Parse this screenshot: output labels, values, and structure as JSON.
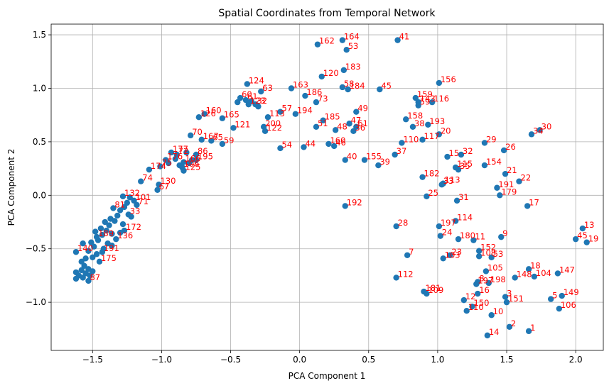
{
  "chart_data": {
    "type": "scatter",
    "title": "Spatial Coordinates from Temporal Network",
    "xlabel": "PCA Component 1",
    "ylabel": "PCA Component 2",
    "xlim": [
      -1.8,
      2.2
    ],
    "ylim": [
      -1.45,
      1.6
    ],
    "xticks": [
      -1.5,
      -1.0,
      -0.5,
      0.0,
      0.5,
      1.0,
      1.5,
      2.0
    ],
    "xtick_labels": [
      "−1.5",
      "−1.0",
      "−0.5",
      "0.0",
      "0.5",
      "1.0",
      "1.5",
      "2.0"
    ],
    "yticks": [
      -1.0,
      -0.5,
      0.0,
      0.5,
      1.0,
      1.5
    ],
    "ytick_labels": [
      "−1.0",
      "−0.5",
      "0.0",
      "0.5",
      "1.0",
      "1.5"
    ],
    "grid": true,
    "marker_color": "#1f77b4",
    "label_color": "#ff0000",
    "points": [
      {
        "label": "164",
        "x": 0.31,
        "y": 1.45
      },
      {
        "label": "41",
        "x": 0.71,
        "y": 1.45
      },
      {
        "label": "162",
        "x": 0.13,
        "y": 1.41
      },
      {
        "label": "53",
        "x": 0.34,
        "y": 1.36
      },
      {
        "label": "183",
        "x": 0.32,
        "y": 1.17
      },
      {
        "label": "120",
        "x": 0.16,
        "y": 1.11
      },
      {
        "label": "156",
        "x": 1.01,
        "y": 1.05
      },
      {
        "label": "124",
        "x": -0.38,
        "y": 1.04
      },
      {
        "label": "58",
        "x": 0.31,
        "y": 1.01
      },
      {
        "label": "184",
        "x": 0.35,
        "y": 0.99
      },
      {
        "label": "45",
        "x": 0.58,
        "y": 0.99
      },
      {
        "label": "163",
        "x": -0.06,
        "y": 1.0
      },
      {
        "label": "63",
        "x": -0.28,
        "y": 0.97
      },
      {
        "label": "186",
        "x": 0.04,
        "y": 0.93
      },
      {
        "label": "159",
        "x": 0.84,
        "y": 0.91
      },
      {
        "label": "60",
        "x": -0.43,
        "y": 0.91
      },
      {
        "label": "61",
        "x": -0.39,
        "y": 0.89
      },
      {
        "label": "143",
        "x": 0.86,
        "y": 0.87
      },
      {
        "label": "116",
        "x": 0.96,
        "y": 0.87
      },
      {
        "label": "73",
        "x": 0.12,
        "y": 0.87
      },
      {
        "label": "123",
        "x": -0.37,
        "y": 0.85
      },
      {
        "label": "32b",
        "x": -0.32,
        "y": 0.85
      },
      {
        "label": "59b",
        "x": 0.86,
        "y": 0.84
      },
      {
        "label": "57",
        "x": -0.14,
        "y": 0.78
      },
      {
        "label": "49",
        "x": 0.41,
        "y": 0.78
      },
      {
        "label": "194",
        "x": -0.03,
        "y": 0.76
      },
      {
        "label": "160",
        "x": -0.69,
        "y": 0.76
      },
      {
        "label": "126",
        "x": -0.73,
        "y": 0.73
      },
      {
        "label": "165",
        "x": -0.56,
        "y": 0.72
      },
      {
        "label": "113b",
        "x": -0.23,
        "y": 0.73
      },
      {
        "label": "185",
        "x": 0.17,
        "y": 0.7
      },
      {
        "label": "158",
        "x": 0.77,
        "y": 0.71
      },
      {
        "label": "47",
        "x": 0.36,
        "y": 0.67
      },
      {
        "label": "193",
        "x": 0.93,
        "y": 0.66
      },
      {
        "label": "121",
        "x": -0.48,
        "y": 0.63
      },
      {
        "label": "200",
        "x": -0.26,
        "y": 0.64
      },
      {
        "label": "51",
        "x": 0.12,
        "y": 0.64
      },
      {
        "label": "38",
        "x": 0.82,
        "y": 0.64
      },
      {
        "label": "61b",
        "x": 0.41,
        "y": 0.64
      },
      {
        "label": "48",
        "x": 0.26,
        "y": 0.61
      },
      {
        "label": "36",
        "x": 0.39,
        "y": 0.6
      },
      {
        "label": "122",
        "x": -0.25,
        "y": 0.6
      },
      {
        "label": "30",
        "x": 1.74,
        "y": 0.61
      },
      {
        "label": "34",
        "x": 1.68,
        "y": 0.57
      },
      {
        "label": "20",
        "x": 1.01,
        "y": 0.57
      },
      {
        "label": "70",
        "x": -0.79,
        "y": 0.56
      },
      {
        "label": "167",
        "x": -0.71,
        "y": 0.52
      },
      {
        "label": "65",
        "x": -0.64,
        "y": 0.51
      },
      {
        "label": "59",
        "x": -0.56,
        "y": 0.48
      },
      {
        "label": "117",
        "x": 0.89,
        "y": 0.52
      },
      {
        "label": "110",
        "x": 0.74,
        "y": 0.49
      },
      {
        "label": "29",
        "x": 1.34,
        "y": 0.49
      },
      {
        "label": "160b",
        "x": 0.21,
        "y": 0.48
      },
      {
        "label": "44",
        "x": 0.03,
        "y": 0.45
      },
      {
        "label": "46",
        "x": 0.25,
        "y": 0.46
      },
      {
        "label": "54",
        "x": -0.14,
        "y": 0.44
      },
      {
        "label": "26",
        "x": 1.48,
        "y": 0.42
      },
      {
        "label": "177",
        "x": -0.93,
        "y": 0.4
      },
      {
        "label": "72",
        "x": -0.89,
        "y": 0.38
      },
      {
        "label": "86",
        "x": -0.75,
        "y": 0.38
      },
      {
        "label": "37",
        "x": 0.69,
        "y": 0.38
      },
      {
        "label": "15",
        "x": 1.07,
        "y": 0.36
      },
      {
        "label": "32",
        "x": 1.17,
        "y": 0.38
      },
      {
        "label": "40",
        "x": 0.33,
        "y": 0.33
      },
      {
        "label": "155",
        "x": 0.47,
        "y": 0.33
      },
      {
        "label": "195",
        "x": -0.75,
        "y": 0.33
      },
      {
        "label": "176",
        "x": -0.97,
        "y": 0.33
      },
      {
        "label": "166",
        "x": -0.84,
        "y": 0.31
      },
      {
        "label": "39",
        "x": 0.57,
        "y": 0.28
      },
      {
        "label": "154",
        "x": 1.34,
        "y": 0.28
      },
      {
        "label": "75",
        "x": -1.01,
        "y": 0.27
      },
      {
        "label": "115",
        "x": 1.13,
        "y": 0.26
      },
      {
        "label": "35",
        "x": 1.15,
        "y": 0.24
      },
      {
        "label": "106b",
        "x": -0.85,
        "y": 0.26
      },
      {
        "label": "125",
        "x": -0.84,
        "y": 0.23
      },
      {
        "label": "174",
        "x": -1.09,
        "y": 0.24
      },
      {
        "label": "21",
        "x": 1.49,
        "y": 0.2
      },
      {
        "label": "182",
        "x": 0.89,
        "y": 0.17
      },
      {
        "label": "22",
        "x": 1.59,
        "y": 0.13
      },
      {
        "label": "74",
        "x": -1.15,
        "y": 0.13
      },
      {
        "label": "113",
        "x": 1.04,
        "y": 0.11
      },
      {
        "label": "33",
        "x": 1.03,
        "y": 0.1
      },
      {
        "label": "130",
        "x": -1.02,
        "y": 0.1
      },
      {
        "label": "191",
        "x": 1.43,
        "y": 0.07
      },
      {
        "label": "67",
        "x": -1.03,
        "y": 0.05
      },
      {
        "label": "179",
        "x": 1.45,
        "y": 0.0
      },
      {
        "label": "25",
        "x": 0.92,
        "y": -0.01
      },
      {
        "label": "132",
        "x": -1.28,
        "y": -0.01
      },
      {
        "label": "101",
        "x": -1.2,
        "y": -0.05
      },
      {
        "label": "31",
        "x": 1.14,
        "y": -0.05
      },
      {
        "label": "17",
        "x": 1.65,
        "y": -0.1
      },
      {
        "label": "192",
        "x": 0.33,
        "y": -0.1
      },
      {
        "label": "71",
        "x": -1.18,
        "y": -0.09
      },
      {
        "label": "81",
        "x": -1.35,
        "y": -0.12
      },
      {
        "label": "33b",
        "x": -1.24,
        "y": -0.18
      },
      {
        "label": "28",
        "x": 0.7,
        "y": -0.29
      },
      {
        "label": "197",
        "x": 1.01,
        "y": -0.29
      },
      {
        "label": "114",
        "x": 1.13,
        "y": -0.24
      },
      {
        "label": "13",
        "x": 2.05,
        "y": -0.31
      },
      {
        "label": "172",
        "x": -1.27,
        "y": -0.33
      },
      {
        "label": "189",
        "x": -1.47,
        "y": -0.39
      },
      {
        "label": "24",
        "x": 1.02,
        "y": -0.38
      },
      {
        "label": "180",
        "x": 1.15,
        "y": -0.41
      },
      {
        "label": "11",
        "x": 1.26,
        "y": -0.42
      },
      {
        "label": "9",
        "x": 1.46,
        "y": -0.39
      },
      {
        "label": "45b",
        "x": 2.0,
        "y": -0.41
      },
      {
        "label": "19",
        "x": 2.08,
        "y": -0.44
      },
      {
        "label": "136",
        "x": -1.33,
        "y": -0.41
      },
      {
        "label": "140",
        "x": -1.62,
        "y": -0.53
      },
      {
        "label": "152",
        "x": 1.3,
        "y": -0.52
      },
      {
        "label": "191b",
        "x": -1.43,
        "y": -0.53
      },
      {
        "label": "7",
        "x": 0.78,
        "y": -0.56
      },
      {
        "label": "23",
        "x": 1.09,
        "y": -0.56
      },
      {
        "label": "103",
        "x": 1.04,
        "y": -0.59
      },
      {
        "label": "108",
        "x": 1.3,
        "y": -0.57
      },
      {
        "label": "53b",
        "x": 1.39,
        "y": -0.58
      },
      {
        "label": "175",
        "x": -1.45,
        "y": -0.62
      },
      {
        "label": "105",
        "x": 1.35,
        "y": -0.71
      },
      {
        "label": "18",
        "x": 1.66,
        "y": -0.69
      },
      {
        "label": "147",
        "x": 1.87,
        "y": -0.73
      },
      {
        "label": "104",
        "x": 1.7,
        "y": -0.76
      },
      {
        "label": "148",
        "x": 1.56,
        "y": -0.77
      },
      {
        "label": "112",
        "x": 0.7,
        "y": -0.77
      },
      {
        "label": "8",
        "x": 1.29,
        "y": -0.81
      },
      {
        "label": "197b",
        "x": 1.28,
        "y": -0.83
      },
      {
        "label": "198",
        "x": 1.37,
        "y": -0.82
      },
      {
        "label": "87",
        "x": -1.53,
        "y": -0.8
      },
      {
        "label": "181",
        "x": 0.9,
        "y": -0.9
      },
      {
        "label": "109",
        "x": 0.92,
        "y": -0.92
      },
      {
        "label": "16",
        "x": 1.29,
        "y": -0.92
      },
      {
        "label": "149",
        "x": 1.9,
        "y": -0.94
      },
      {
        "label": "3",
        "x": 1.49,
        "y": -0.95
      },
      {
        "label": "5",
        "x": 1.82,
        "y": -0.97
      },
      {
        "label": "12",
        "x": 1.19,
        "y": -0.98
      },
      {
        "label": "151",
        "x": 1.5,
        "y": -1.0
      },
      {
        "label": "150",
        "x": 1.25,
        "y": -1.04
      },
      {
        "label": "106",
        "x": 1.88,
        "y": -1.06
      },
      {
        "label": "110b",
        "x": 1.21,
        "y": -1.08
      },
      {
        "label": "10",
        "x": 1.39,
        "y": -1.12
      },
      {
        "label": "2",
        "x": 1.52,
        "y": -1.23
      },
      {
        "label": "1",
        "x": 1.66,
        "y": -1.27
      },
      {
        "label": "14",
        "x": 1.36,
        "y": -1.31
      }
    ],
    "unlabeled_points": [
      {
        "x": -1.62,
        "y": -0.72
      },
      {
        "x": -1.6,
        "y": -0.75
      },
      {
        "x": -1.62,
        "y": -0.78
      },
      {
        "x": -1.58,
        "y": -0.7
      },
      {
        "x": -1.57,
        "y": -0.77
      },
      {
        "x": -1.55,
        "y": -0.73
      },
      {
        "x": -1.53,
        "y": -0.69
      },
      {
        "x": -1.52,
        "y": -0.75
      },
      {
        "x": -1.5,
        "y": -0.71
      },
      {
        "x": -1.56,
        "y": -0.66
      },
      {
        "x": -1.58,
        "y": -0.62
      },
      {
        "x": -1.55,
        "y": -0.59
      },
      {
        "x": -1.5,
        "y": -0.58
      },
      {
        "x": -1.47,
        "y": -0.55
      },
      {
        "x": -1.49,
        "y": -0.48
      },
      {
        "x": -1.53,
        "y": -0.52
      },
      {
        "x": -1.57,
        "y": -0.45
      },
      {
        "x": -1.51,
        "y": -0.44
      },
      {
        "x": -1.46,
        "y": -0.42
      },
      {
        "x": -1.43,
        "y": -0.37
      },
      {
        "x": -1.48,
        "y": -0.34
      },
      {
        "x": -1.44,
        "y": -0.31
      },
      {
        "x": -1.4,
        "y": -0.33
      },
      {
        "x": -1.38,
        "y": -0.28
      },
      {
        "x": -1.41,
        "y": -0.25
      },
      {
        "x": -1.37,
        "y": -0.22
      },
      {
        "x": -1.34,
        "y": -0.24
      },
      {
        "x": -1.32,
        "y": -0.19
      },
      {
        "x": -1.3,
        "y": -0.14
      },
      {
        "x": -1.27,
        "y": -0.11
      },
      {
        "x": -1.25,
        "y": -0.07
      },
      {
        "x": -1.36,
        "y": -0.36
      },
      {
        "x": -1.39,
        "y": -0.45
      },
      {
        "x": -1.42,
        "y": -0.5
      },
      {
        "x": -1.36,
        "y": -0.47
      },
      {
        "x": -1.3,
        "y": -0.35
      },
      {
        "x": -1.28,
        "y": -0.27
      },
      {
        "x": -1.22,
        "y": -0.2
      },
      {
        "x": -1.23,
        "y": -0.02
      },
      {
        "x": -0.95,
        "y": 0.3
      },
      {
        "x": -0.9,
        "y": 0.34
      },
      {
        "x": -0.87,
        "y": 0.28
      },
      {
        "x": -0.82,
        "y": 0.4
      },
      {
        "x": -0.78,
        "y": 0.33
      },
      {
        "x": -0.8,
        "y": 0.3
      },
      {
        "x": -0.45,
        "y": 0.87
      },
      {
        "x": -0.35,
        "y": 0.88
      },
      {
        "x": -0.3,
        "y": 0.83
      }
    ]
  }
}
